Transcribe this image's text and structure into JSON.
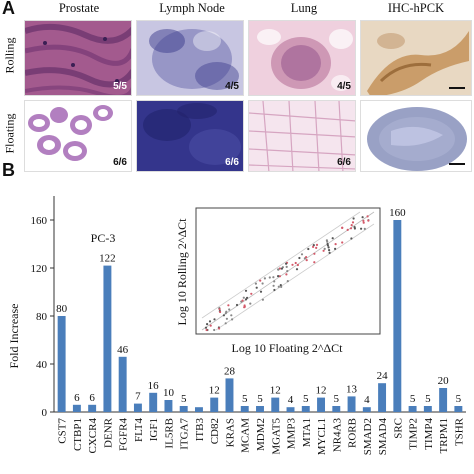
{
  "panel_a": {
    "letter": "A",
    "columns": [
      "Prostate",
      "Lymph Node",
      "Lung",
      "IHC-hPCK"
    ],
    "rows": [
      "Rolling",
      "Floating"
    ],
    "ratios": {
      "rolling": [
        "5/5",
        "4/5",
        "4/5",
        ""
      ],
      "floating": [
        "6/6",
        "6/6",
        "6/6",
        ""
      ]
    }
  },
  "panel_b": {
    "letter": "B",
    "cell_line": "PC-3",
    "inset": {
      "xlabel": "Log 10 Floating  2^ΔCt",
      "ylabel": "Log 10 Rolling 2^ΔCt"
    }
  },
  "chart_data": {
    "type": "bar",
    "ylabel": "Fold Increase",
    "ylim": [
      0,
      180
    ],
    "yticks": [
      0,
      40,
      80,
      120,
      160
    ],
    "color": "#4a7ebb",
    "categories": [
      "CST7",
      "CTBP1",
      "CXCR4",
      "DENR",
      "FGFR4",
      "FLT4",
      "IGF1",
      "IL5RB",
      "ITGA7",
      "ITB3",
      "CD82",
      "KRAS",
      "MCAM",
      "MDM2",
      "MGAT5",
      "MMP3",
      "MTA1",
      "MYCL1",
      "NR4A3",
      "RORB",
      "SMAD2",
      "SMAD4",
      "SRC",
      "TIMP2",
      "TIMP4",
      "TRPM1",
      "TSHR"
    ],
    "values": [
      80,
      6,
      6,
      122,
      46,
      7,
      16,
      10,
      5,
      4,
      12,
      28,
      5,
      5,
      12,
      4,
      5,
      12,
      5,
      13,
      4,
      24,
      160,
      5,
      5,
      20,
      5
    ],
    "labels": [
      "80",
      "6",
      "6",
      "122",
      "46",
      "7",
      "16",
      "10",
      "5",
      "",
      "12",
      "28",
      "5",
      "5",
      "12",
      "4",
      "5",
      "12",
      "5",
      "13",
      "4",
      "24",
      "160",
      "5",
      "5",
      "20",
      "5"
    ]
  }
}
